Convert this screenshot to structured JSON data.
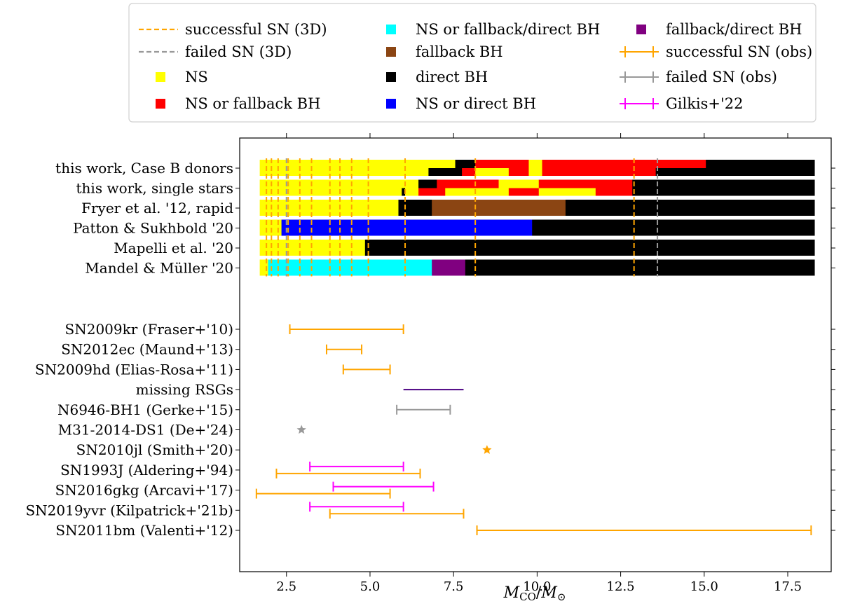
{
  "chart_data": {
    "type": "bar",
    "title": "",
    "xlabel": "M_CO/M_⊙",
    "xlabel_parts": {
      "main": "M",
      "sub1": "CO",
      "slash": "/",
      "main2": "M",
      "sub2": "⊙"
    },
    "xlim": [
      1.1,
      18.8
    ],
    "xticks": [
      2.5,
      5.0,
      7.5,
      10.0,
      12.5,
      15.0,
      17.5
    ],
    "xtick_labels": [
      "2.5",
      "5.0",
      "7.5",
      "10.0",
      "12.5",
      "15.0",
      "17.5"
    ],
    "grid": false,
    "legend_position": "top",
    "colors": {
      "NS": "#ffff00",
      "NS_or_fallback_BH": "#ff0000",
      "NS_or_fallback_direct_BH": "#00ffff",
      "fallback_BH": "#8b4513",
      "direct_BH": "#000000",
      "NS_or_direct_BH": "#0000ff",
      "fallback_direct_BH": "#800080",
      "successful": "#ffa500",
      "failed": "#999999",
      "gilkis": "#ff00ff",
      "missing": "#4b0082"
    },
    "legend": [
      {
        "key": "successful_3d",
        "label": "successful SN (3D)",
        "style": "dash",
        "color": "#ffa500"
      },
      {
        "key": "failed_3d",
        "label": "failed SN (3D)",
        "style": "dash",
        "color": "#999999"
      },
      {
        "key": "ns",
        "label": "NS",
        "style": "square",
        "color": "#ffff00"
      },
      {
        "key": "ns_fb",
        "label": "NS or fallback BH",
        "style": "square",
        "color": "#ff0000"
      },
      {
        "key": "ns_fb_direct",
        "label": "NS or fallback/direct BH",
        "style": "square",
        "color": "#00ffff"
      },
      {
        "key": "fb",
        "label": "fallback BH",
        "style": "square",
        "color": "#8b4513"
      },
      {
        "key": "direct",
        "label": "direct BH",
        "style": "square",
        "color": "#000000"
      },
      {
        "key": "ns_direct",
        "label": "NS or direct BH",
        "style": "square",
        "color": "#0000ff"
      },
      {
        "key": "fb_direct",
        "label": "fallback/direct BH",
        "style": "square",
        "color": "#800080"
      },
      {
        "key": "successful_obs",
        "label": "successful SN (obs)",
        "style": "errorbar",
        "color": "#ffa500"
      },
      {
        "key": "failed_obs",
        "label": "failed SN (obs)",
        "style": "errorbar",
        "color": "#999999"
      },
      {
        "key": "gilkis",
        "label": "Gilkis+'22",
        "style": "errorbar",
        "color": "#ff00ff"
      }
    ],
    "model_rows": [
      {
        "label": "this work, Case B donors",
        "top": [
          [
            1.7,
            7.55,
            "#ffff00"
          ],
          [
            7.55,
            8.15,
            "#000000"
          ],
          [
            8.15,
            9.75,
            "#ff0000"
          ],
          [
            9.75,
            10.15,
            "#ffff00"
          ],
          [
            10.15,
            15.05,
            "#ff0000"
          ],
          [
            15.05,
            18.3,
            "#000000"
          ]
        ],
        "bottom": [
          [
            1.7,
            6.75,
            "#ffff00"
          ],
          [
            6.75,
            7.75,
            "#000000"
          ],
          [
            7.75,
            8.15,
            "#ff0000"
          ],
          [
            8.15,
            9.15,
            "#ffff00"
          ],
          [
            9.15,
            9.75,
            "#ff0000"
          ],
          [
            9.75,
            10.15,
            "#ffff00"
          ],
          [
            10.15,
            13.55,
            "#ff0000"
          ],
          [
            13.55,
            18.3,
            "#000000"
          ]
        ]
      },
      {
        "label": "this work, single stars",
        "top": [
          [
            1.7,
            6.45,
            "#ffff00"
          ],
          [
            6.45,
            7.0,
            "#000000"
          ],
          [
            7.0,
            8.85,
            "#ff0000"
          ],
          [
            8.85,
            10.05,
            "#ffff00"
          ],
          [
            10.05,
            12.85,
            "#ff0000"
          ],
          [
            12.85,
            18.3,
            "#000000"
          ]
        ],
        "bottom": [
          [
            1.7,
            5.95,
            "#ffff00"
          ],
          [
            5.95,
            6.05,
            "#000000"
          ],
          [
            6.05,
            6.45,
            "#ffff00"
          ],
          [
            6.45,
            7.25,
            "#ff0000"
          ],
          [
            7.25,
            9.15,
            "#ffff00"
          ],
          [
            9.15,
            10.05,
            "#ff0000"
          ],
          [
            10.05,
            11.75,
            "#ffff00"
          ],
          [
            11.75,
            12.85,
            "#ff0000"
          ],
          [
            12.85,
            18.3,
            "#000000"
          ]
        ]
      },
      {
        "label": "Fryer et al. '12, rapid",
        "top": [
          [
            1.7,
            5.85,
            "#ffff00"
          ],
          [
            5.85,
            6.85,
            "#000000"
          ],
          [
            6.85,
            10.85,
            "#8b4513"
          ],
          [
            10.85,
            18.3,
            "#000000"
          ]
        ],
        "bottom": [
          [
            1.7,
            5.85,
            "#ffff00"
          ],
          [
            5.85,
            6.85,
            "#000000"
          ],
          [
            6.85,
            10.85,
            "#8b4513"
          ],
          [
            10.85,
            18.3,
            "#000000"
          ]
        ]
      },
      {
        "label": "Patton & Sukhbold '20",
        "top": [
          [
            1.7,
            2.35,
            "#ffff00"
          ],
          [
            2.35,
            9.85,
            "#0000ff"
          ],
          [
            9.85,
            18.3,
            "#000000"
          ]
        ],
        "bottom": [
          [
            1.7,
            2.35,
            "#ffff00"
          ],
          [
            2.35,
            9.85,
            "#0000ff"
          ],
          [
            9.85,
            18.3,
            "#000000"
          ]
        ]
      },
      {
        "label": "Mapelli et al. '20",
        "top": [
          [
            1.7,
            4.85,
            "#ffff00"
          ],
          [
            4.85,
            18.3,
            "#000000"
          ]
        ],
        "bottom": [
          [
            1.7,
            4.85,
            "#ffff00"
          ],
          [
            4.85,
            18.3,
            "#000000"
          ]
        ]
      },
      {
        "label": "Mandel & Müller '20",
        "top": [
          [
            1.7,
            1.95,
            "#ffff00"
          ],
          [
            1.95,
            6.85,
            "#00ffff"
          ],
          [
            6.85,
            7.85,
            "#800080"
          ],
          [
            7.85,
            18.3,
            "#000000"
          ]
        ],
        "bottom": [
          [
            1.7,
            1.95,
            "#ffff00"
          ],
          [
            1.95,
            6.85,
            "#00ffff"
          ],
          [
            6.85,
            7.85,
            "#800080"
          ],
          [
            7.85,
            18.3,
            "#000000"
          ]
        ]
      }
    ],
    "successful_3d_x": [
      1.9,
      2.05,
      2.25,
      2.55,
      2.9,
      3.25,
      3.8,
      4.1,
      4.45,
      4.95,
      6.05,
      8.15,
      12.9
    ],
    "failed_3d_x": [
      2.5,
      13.6
    ],
    "observations": [
      {
        "label": "SN2009kr (Fraser+'10)",
        "segments": [
          {
            "xmin": 2.6,
            "xmax": 6.0,
            "color": "#ffa500",
            "caps": true
          }
        ]
      },
      {
        "label": "SN2012ec (Maund+'13)",
        "segments": [
          {
            "xmin": 3.7,
            "xmax": 4.75,
            "color": "#ffa500",
            "caps": true
          }
        ]
      },
      {
        "label": "SN2009hd (Elias-Rosa+'11)",
        "segments": [
          {
            "xmin": 4.2,
            "xmax": 5.6,
            "color": "#ffa500",
            "caps": true
          }
        ]
      },
      {
        "label": "missing RSGs",
        "segments": [
          {
            "xmin": 6.0,
            "xmax": 7.8,
            "color": "#4b0082",
            "caps": false
          }
        ]
      },
      {
        "label": "N6946-BH1 (Gerke+'15)",
        "segments": [
          {
            "xmin": 5.8,
            "xmax": 7.4,
            "color": "#999999",
            "caps": true
          }
        ]
      },
      {
        "label": "M31-2014-DS1 (De+'24)",
        "star": {
          "x": 2.95,
          "color": "#999999"
        }
      },
      {
        "label": "SN2010jl (Smith+'20)",
        "star": {
          "x": 8.5,
          "color": "#ffa500"
        }
      },
      {
        "label": "SN1993J (Aldering+'94)",
        "segments": [
          {
            "xmin": 2.2,
            "xmax": 6.5,
            "color": "#ffa500",
            "caps": true,
            "offset": 5
          },
          {
            "xmin": 3.2,
            "xmax": 6.0,
            "color": "#ff00ff",
            "caps": true,
            "offset": -5
          }
        ]
      },
      {
        "label": "SN2016gkg (Arcavi+'17)",
        "segments": [
          {
            "xmin": 1.6,
            "xmax": 5.6,
            "color": "#ffa500",
            "caps": true,
            "offset": 5
          },
          {
            "xmin": 3.9,
            "xmax": 6.9,
            "color": "#ff00ff",
            "caps": true,
            "offset": -5
          }
        ]
      },
      {
        "label": "SN2019yvr (Kilpatrick+'21b)",
        "segments": [
          {
            "xmin": 3.8,
            "xmax": 7.8,
            "color": "#ffa500",
            "caps": true,
            "offset": 5
          },
          {
            "xmin": 3.2,
            "xmax": 6.0,
            "color": "#ff00ff",
            "caps": true,
            "offset": -5
          }
        ]
      },
      {
        "label": "SN2011bm (Valenti+'12)",
        "segments": [
          {
            "xmin": 8.2,
            "xmax": 18.2,
            "color": "#ffa500",
            "caps": true
          }
        ]
      }
    ]
  }
}
